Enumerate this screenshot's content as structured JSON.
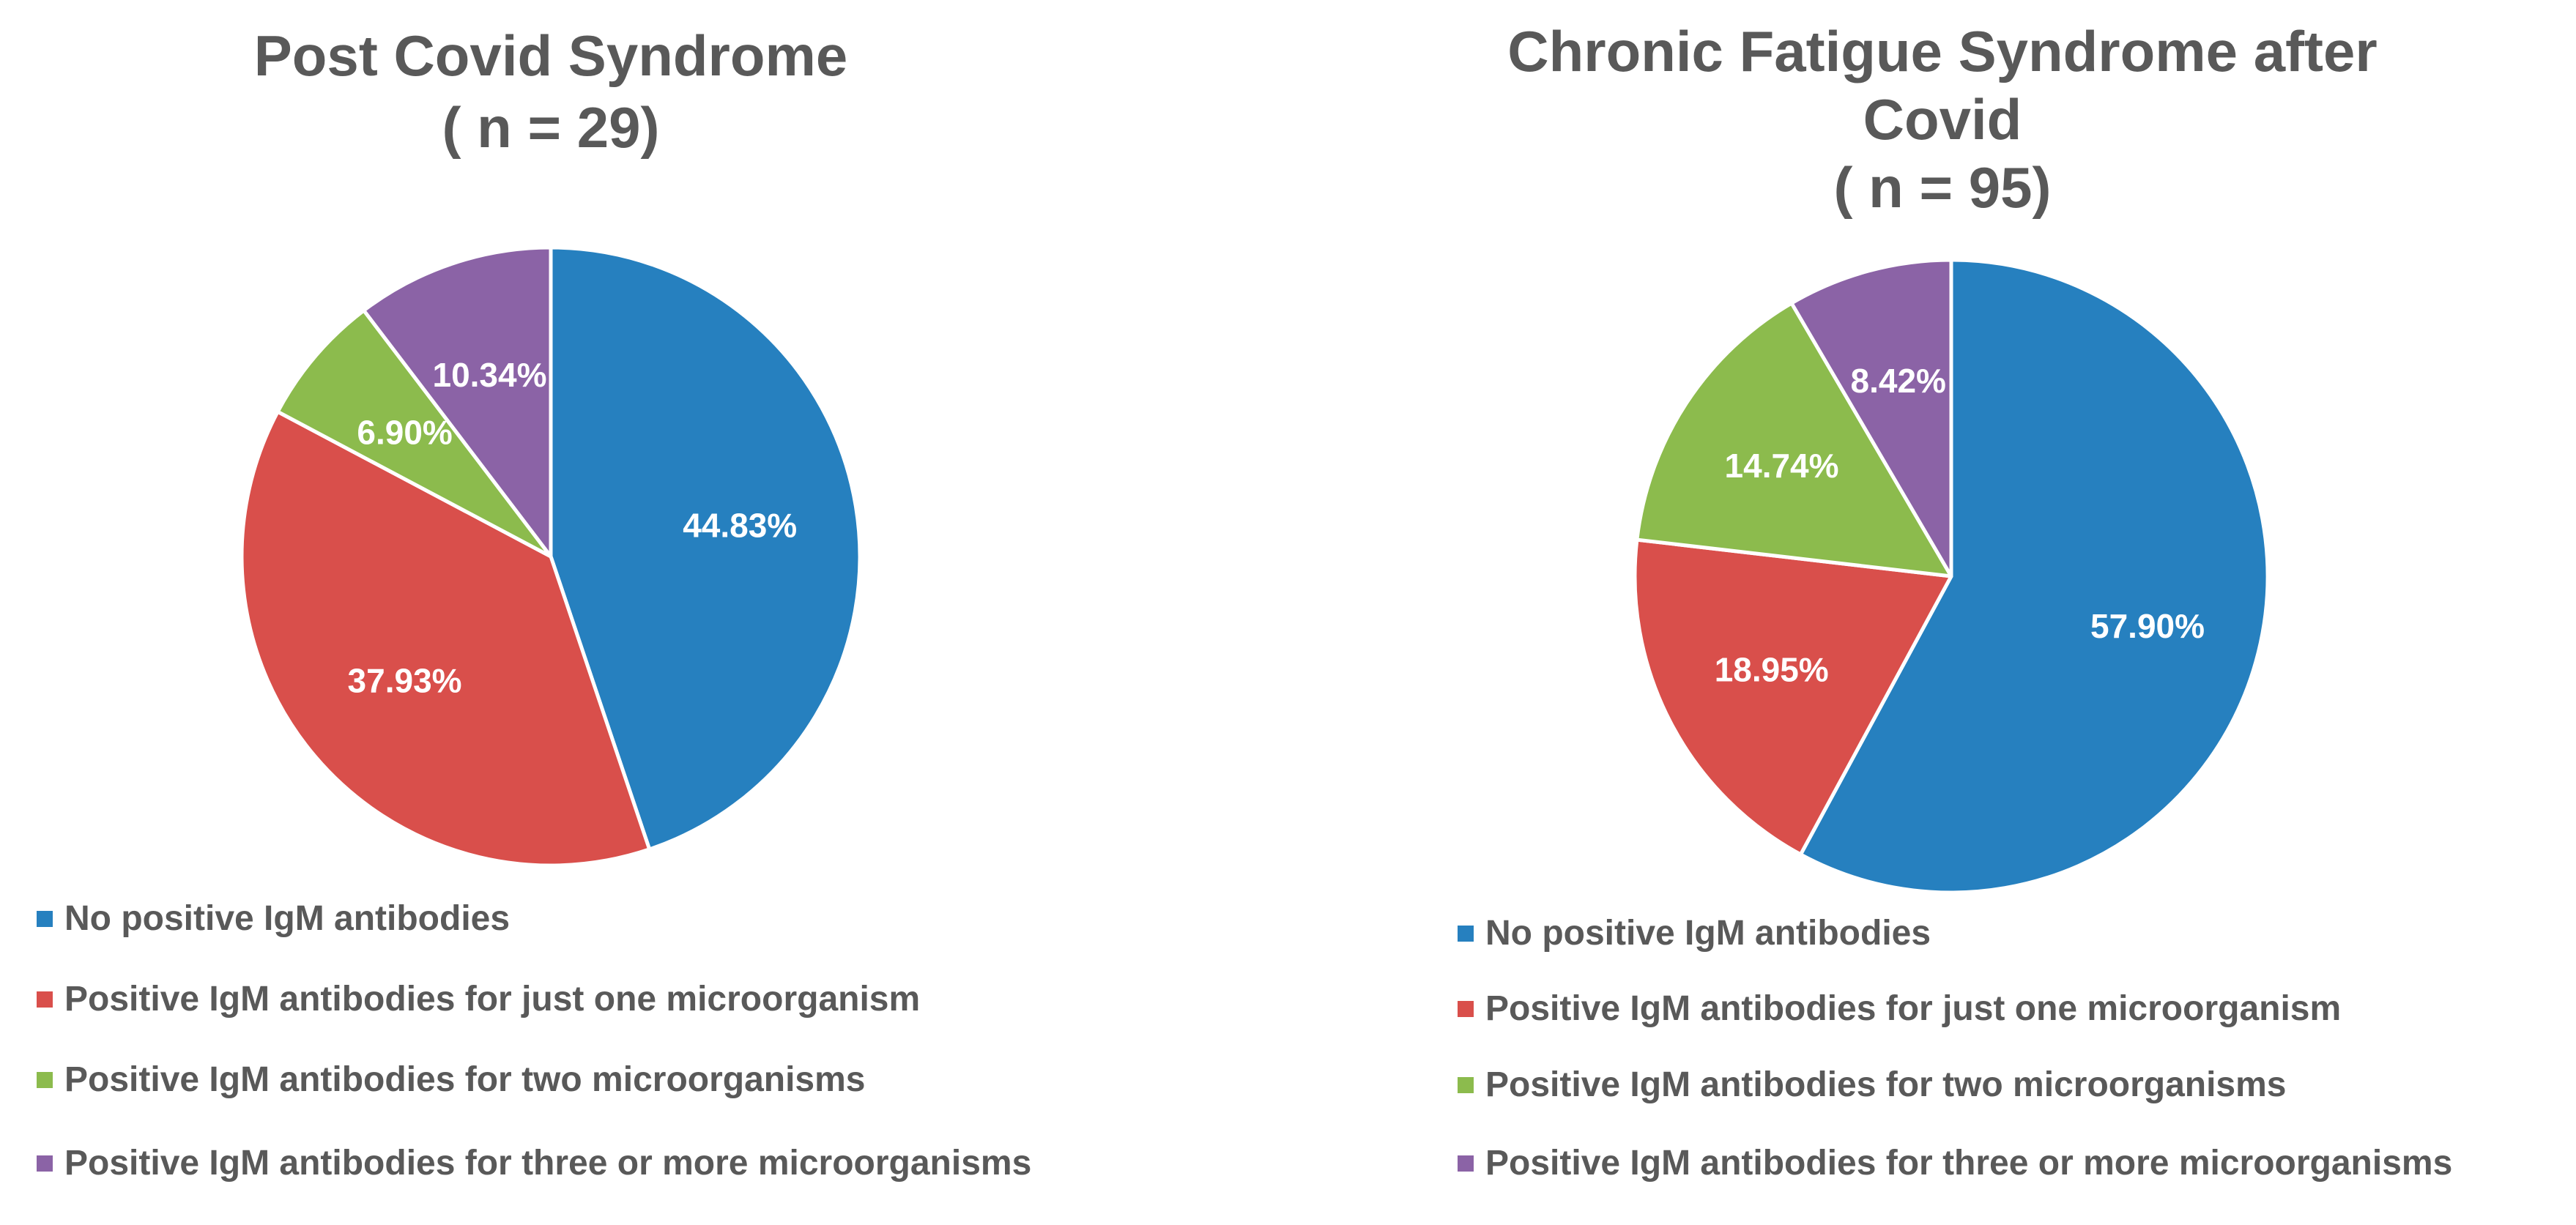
{
  "colors": {
    "none": "#2680BF",
    "one": "#D94F4B",
    "two": "#8CBB4D",
    "three_plus": "#8B63A6",
    "title_text": "#595959",
    "label_text": "#FFFFFF"
  },
  "chart_data": [
    {
      "type": "pie",
      "title": [
        "Post Covid Syndrome",
        "( n = 29)"
      ],
      "categories": [
        "No positive IgM antibodies",
        "Positive IgM antibodies for just one microorganism",
        "Positive IgM antibodies for two microorganisms",
        "Positive IgM antibodies for three or more microorganisms"
      ],
      "values": [
        44.83,
        37.93,
        6.9,
        10.34
      ],
      "labels": [
        "44.83%",
        "37.93%",
        "6.90%",
        "10.34%"
      ],
      "legend_position": "bottom"
    },
    {
      "type": "pie",
      "title": [
        "Chronic Fatigue Syndrome after",
        "Covid",
        "( n = 95)"
      ],
      "categories": [
        "No positive IgM antibodies",
        "Positive IgM antibodies for just one microorganism",
        "Positive IgM antibodies for two microorganisms",
        "Positive IgM antibodies for three or more microorganisms"
      ],
      "values": [
        57.9,
        18.95,
        14.74,
        8.42
      ],
      "labels": [
        "57.90%",
        "18.95%",
        "14.74%",
        "8.42%"
      ],
      "legend_position": "bottom"
    }
  ]
}
